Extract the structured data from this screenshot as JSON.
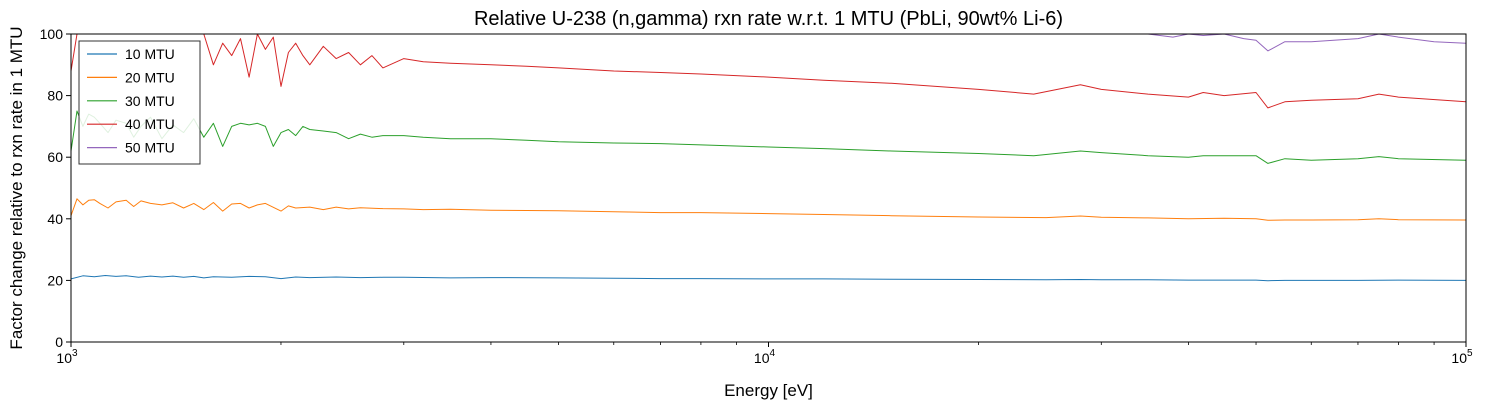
{
  "chart_data": {
    "type": "line",
    "title": "Relative U-238 (n,gamma) rxn rate w.r.t. 1 MTU (PbLi, 90wt% Li-6)",
    "xlabel": "Energy [eV]",
    "ylabel": "Factor change relative to rxn rate in 1 MTU",
    "xscale": "log",
    "xlim": [
      1000,
      100000
    ],
    "ylim": [
      0,
      100
    ],
    "x_major_ticks": [
      1000,
      10000,
      100000
    ],
    "x_tick_labels": [
      {
        "base": "10",
        "exp": "3"
      },
      {
        "base": "10",
        "exp": "4"
      },
      {
        "base": "10",
        "exp": "5"
      }
    ],
    "y_ticks": [
      0,
      20,
      40,
      60,
      80,
      100
    ],
    "y_tick_labels": [
      "0",
      "20",
      "40",
      "60",
      "80",
      "100"
    ],
    "grid": false,
    "legend_position": "upper-left",
    "series": [
      {
        "name": "10 MTU",
        "color": "#1f77b4",
        "x": [
          1000,
          1040,
          1080,
          1120,
          1160,
          1200,
          1250,
          1300,
          1350,
          1400,
          1450,
          1500,
          1550,
          1600,
          1700,
          1800,
          1900,
          2000,
          2100,
          2200,
          2400,
          2600,
          2800,
          3000,
          3500,
          4000,
          5000,
          6000,
          7000,
          8000,
          10000,
          12000,
          15000,
          20000,
          25000,
          28000,
          30000,
          35000,
          40000,
          45000,
          50000,
          52000,
          55000,
          60000,
          70000,
          80000,
          100000
        ],
        "y": [
          20.5,
          21.5,
          21.2,
          21.6,
          21.3,
          21.5,
          21.0,
          21.4,
          21.1,
          21.4,
          21.0,
          21.3,
          20.8,
          21.2,
          21.0,
          21.3,
          21.2,
          20.6,
          21.1,
          20.9,
          21.1,
          20.9,
          21.0,
          21.0,
          20.8,
          20.9,
          20.8,
          20.7,
          20.6,
          20.6,
          20.5,
          20.5,
          20.4,
          20.3,
          20.2,
          20.3,
          20.2,
          20.2,
          20.1,
          20.1,
          20.1,
          19.9,
          20.0,
          20.0,
          20.0,
          20.1,
          20.0
        ]
      },
      {
        "name": "20 MTU",
        "color": "#ff7f0e",
        "x": [
          1000,
          1020,
          1040,
          1060,
          1080,
          1100,
          1130,
          1160,
          1200,
          1230,
          1260,
          1300,
          1350,
          1400,
          1450,
          1500,
          1550,
          1600,
          1650,
          1700,
          1750,
          1800,
          1850,
          1900,
          2000,
          2050,
          2100,
          2200,
          2300,
          2400,
          2500,
          2600,
          2800,
          3000,
          3200,
          3500,
          4000,
          4500,
          5000,
          6000,
          7000,
          8000,
          10000,
          12000,
          15000,
          20000,
          25000,
          28000,
          30000,
          35000,
          40000,
          45000,
          50000,
          52000,
          55000,
          60000,
          70000,
          75000,
          80000,
          100000
        ],
        "y": [
          41.0,
          46.5,
          44.5,
          46.0,
          46.2,
          45.0,
          43.5,
          45.5,
          46.0,
          44.0,
          45.8,
          45.0,
          44.5,
          45.2,
          43.5,
          45.0,
          43.0,
          45.3,
          42.5,
          44.8,
          45.0,
          43.5,
          44.5,
          45.0,
          42.5,
          44.2,
          43.5,
          43.8,
          43.0,
          43.8,
          43.2,
          43.6,
          43.3,
          43.2,
          43.0,
          43.1,
          42.8,
          42.7,
          42.6,
          42.3,
          42.0,
          42.0,
          41.7,
          41.4,
          41.0,
          40.6,
          40.4,
          40.9,
          40.5,
          40.3,
          40.0,
          40.2,
          40.0,
          39.5,
          39.6,
          39.6,
          39.7,
          40.0,
          39.7,
          39.6
        ]
      },
      {
        "name": "30 MTU",
        "color": "#2ca02c",
        "x": [
          1000,
          1020,
          1040,
          1060,
          1080,
          1100,
          1130,
          1160,
          1200,
          1230,
          1260,
          1300,
          1350,
          1400,
          1450,
          1500,
          1550,
          1600,
          1650,
          1700,
          1750,
          1800,
          1850,
          1900,
          1950,
          2000,
          2050,
          2100,
          2150,
          2200,
          2300,
          2400,
          2500,
          2600,
          2700,
          2800,
          3000,
          3200,
          3500,
          4000,
          4500,
          5000,
          6000,
          7000,
          8000,
          10000,
          12000,
          15000,
          20000,
          24000,
          28000,
          30000,
          35000,
          40000,
          42000,
          45000,
          50000,
          52000,
          55000,
          60000,
          70000,
          75000,
          80000,
          100000
        ],
        "y": [
          62.0,
          75.0,
          70.0,
          74.0,
          73.0,
          71.0,
          68.0,
          72.0,
          71.0,
          66.5,
          70.0,
          73.0,
          66.0,
          70.5,
          68.0,
          72.5,
          66.5,
          71.0,
          63.5,
          70.0,
          71.0,
          70.5,
          71.0,
          70.0,
          63.5,
          68.0,
          69.0,
          67.0,
          70.0,
          69.0,
          68.5,
          68.0,
          66.0,
          67.5,
          66.5,
          67.0,
          67.0,
          66.5,
          66.0,
          66.0,
          65.5,
          65.0,
          64.6,
          64.4,
          64.0,
          63.3,
          62.8,
          62.0,
          61.2,
          60.5,
          62.0,
          61.5,
          60.5,
          60.0,
          60.5,
          60.5,
          60.5,
          58.0,
          59.5,
          59.0,
          59.5,
          60.2,
          59.5,
          59.0
        ]
      },
      {
        "name": "40 MTU",
        "color": "#d62728",
        "x": [
          1000,
          1020,
          1040,
          1060,
          1080,
          1100,
          1130,
          1160,
          1200,
          1250,
          1300,
          1350,
          1400,
          1450,
          1500,
          1550,
          1600,
          1650,
          1700,
          1750,
          1800,
          1850,
          1900,
          1950,
          2000,
          2050,
          2100,
          2150,
          2200,
          2300,
          2400,
          2500,
          2600,
          2700,
          2800,
          3000,
          3200,
          3500,
          4000,
          4500,
          5000,
          6000,
          7000,
          8000,
          10000,
          12000,
          15000,
          20000,
          24000,
          28000,
          30000,
          35000,
          40000,
          42000,
          45000,
          50000,
          52000,
          55000,
          60000,
          70000,
          75000,
          80000,
          100000
        ],
        "y": [
          88.0,
          100,
          100,
          100,
          100,
          100,
          100,
          100,
          100,
          100,
          100,
          100,
          100,
          100,
          100,
          100,
          90.0,
          97.0,
          93.0,
          98.5,
          86.0,
          100,
          95.0,
          99.0,
          83.0,
          94.0,
          97.0,
          93.0,
          90.0,
          96.0,
          92.0,
          94.0,
          90.0,
          93.0,
          89.0,
          92.0,
          91.0,
          90.5,
          90.0,
          89.5,
          89.0,
          88.0,
          87.5,
          87.0,
          86.0,
          85.0,
          84.0,
          82.0,
          80.5,
          83.5,
          82.0,
          80.5,
          79.5,
          81.0,
          80.0,
          81.0,
          76.0,
          78.0,
          78.5,
          79.0,
          80.5,
          79.5,
          78.0
        ]
      },
      {
        "name": "50 MTU",
        "color": "#9467bd",
        "x": [
          35000,
          38000,
          40000,
          42000,
          45000,
          48000,
          50000,
          52000,
          55000,
          60000,
          70000,
          75000,
          80000,
          90000,
          100000
        ],
        "y": [
          100,
          99.0,
          100,
          99.5,
          100,
          98.5,
          98.0,
          94.5,
          97.5,
          97.5,
          98.5,
          100,
          99.0,
          97.5,
          97.0
        ]
      }
    ]
  }
}
